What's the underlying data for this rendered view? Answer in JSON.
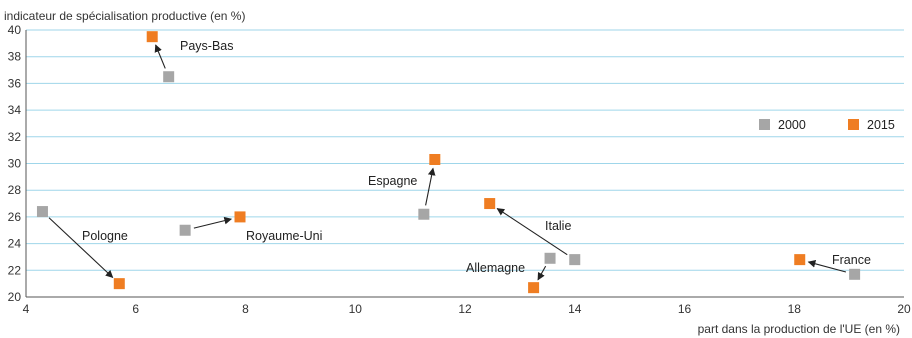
{
  "chart_data": {
    "type": "scatter",
    "xlabel": "part dans la production de l'UE (en %)",
    "ylabel": "indicateur de spécialisation productive (en %)",
    "xlim": [
      4,
      20
    ],
    "ylim": [
      20,
      40
    ],
    "x_ticks": [
      "4",
      "6",
      "8",
      "10",
      "12",
      "14",
      "16",
      "18",
      "20"
    ],
    "y_ticks": [
      "20",
      "22",
      "24",
      "26",
      "28",
      "30",
      "32",
      "34",
      "36",
      "38",
      "40"
    ],
    "grid": "horizontal",
    "legend_position": "right",
    "series": [
      {
        "name": "2000",
        "color": "#a6a6a6"
      },
      {
        "name": "2015",
        "color": "#ef7d22"
      }
    ],
    "points": [
      {
        "country": "Pays-Bas",
        "x2000": 6.6,
        "y2000": 36.5,
        "x2015": 6.3,
        "y2015": 39.5
      },
      {
        "country": "Pologne",
        "x2000": 4.3,
        "y2000": 26.4,
        "x2015": 5.7,
        "y2015": 21.0
      },
      {
        "country": "Royaume-Uni",
        "x2000": 6.9,
        "y2000": 25.0,
        "x2015": 7.9,
        "y2015": 26.0
      },
      {
        "country": "Espagne",
        "x2000": 11.25,
        "y2000": 26.2,
        "x2015": 11.45,
        "y2015": 30.3
      },
      {
        "country": "Italie",
        "x2000": 14.0,
        "y2000": 22.8,
        "x2015": 12.45,
        "y2015": 27.0
      },
      {
        "country": "Allemagne",
        "x2000": 13.55,
        "y2000": 22.9,
        "x2015": 13.25,
        "y2015": 20.7
      },
      {
        "country": "France",
        "x2000": 19.1,
        "y2000": 21.7,
        "x2015": 18.1,
        "y2015": 22.8
      }
    ]
  }
}
